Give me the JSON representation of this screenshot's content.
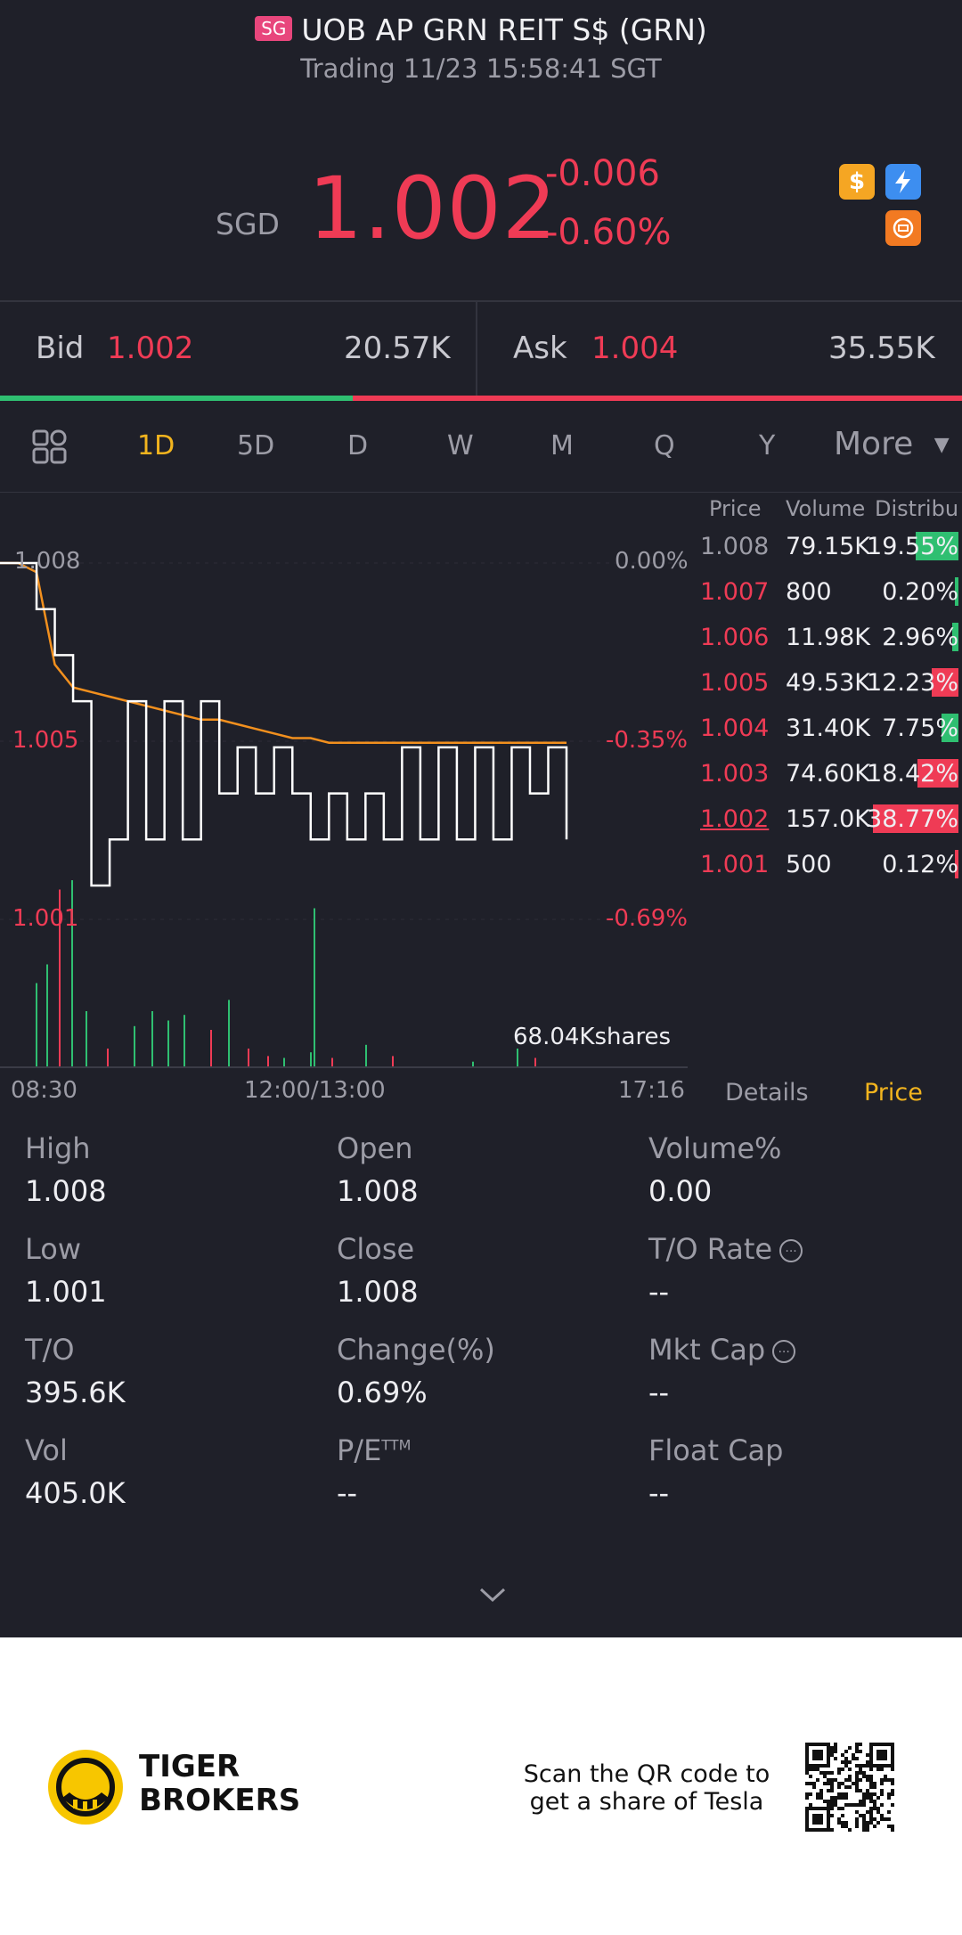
{
  "header": {
    "market_badge": "SG",
    "title": "UOB AP GRN REIT S$ (GRN)",
    "subtitle": "Trading 11/23 15:58:41 SGT",
    "currency": "SGD",
    "price": "1.002",
    "change": "-0.006",
    "change_pct": "-0.60%",
    "icons": [
      "dollar-icon",
      "lightning-icon",
      "badge-icon"
    ]
  },
  "quote": {
    "bid_label": "Bid",
    "bid_price": "1.002",
    "bid_size": "20.57K",
    "ask_label": "Ask",
    "ask_price": "1.004",
    "ask_size": "35.55K",
    "bid_ratio": 0.367
  },
  "tabs": [
    "1D",
    "5D",
    "D",
    "W",
    "M",
    "Q",
    "Y",
    "More"
  ],
  "active_tab": "1D",
  "chart": {
    "y_labels": [
      "1.008",
      "1.005",
      "1.001"
    ],
    "pct_labels": [
      "0.00%",
      "-0.35%",
      "-0.69%"
    ],
    "x_labels": [
      "08:30",
      "12:00/13:00",
      "17:16"
    ],
    "volume_label": "68.04Kshares",
    "colors": {
      "price_line": "#ffffff",
      "avg_line": "#f2901e",
      "up": "#2fbf71",
      "down": "#ef3b55"
    }
  },
  "chart_data": {
    "type": "line",
    "ylim": [
      1.001,
      1.008
    ],
    "series": [
      {
        "values": [
          1.008,
          1.008,
          1.007,
          1.006,
          1.005,
          1.001,
          1.002,
          1.005,
          1.002,
          1.005,
          1.002,
          1.005,
          1.003,
          1.004,
          1.003,
          1.004,
          1.003,
          1.002,
          1.003,
          1.002,
          1.003,
          1.002,
          1.004,
          1.002,
          1.004,
          1.002,
          1.004,
          1.002,
          1.004,
          1.003,
          1.004,
          1.002
        ]
      },
      {
        "values": [
          1.008,
          1.008,
          1.0078,
          1.0058,
          1.0053,
          1.0052,
          1.0051,
          1.005,
          1.0049,
          1.0048,
          1.0047,
          1.0046,
          1.0046,
          1.0045,
          1.0044,
          1.0043,
          1.0042,
          1.0042,
          1.0041,
          1.0041,
          1.0041,
          1.0041,
          1.0041,
          1.0041,
          1.0041,
          1.0041,
          1.0041,
          1.0041,
          1.0041,
          1.0041,
          1.0041,
          1.0041
        ]
      }
    ]
  },
  "order_book": {
    "headers": [
      "Price",
      "Volume",
      "Distribu"
    ],
    "rows": [
      {
        "price": "1.008",
        "volume": "79.15K",
        "dist": "19.55%",
        "pct": 19.55,
        "color": "up"
      },
      {
        "price": "1.007",
        "volume": "800",
        "dist": "0.20%",
        "pct": 0.2,
        "color": "up"
      },
      {
        "price": "1.006",
        "volume": "11.98K",
        "dist": "2.96%",
        "pct": 2.96,
        "color": "up"
      },
      {
        "price": "1.005",
        "volume": "49.53K",
        "dist": "12.23%",
        "pct": 12.23,
        "color": "down"
      },
      {
        "price": "1.004",
        "volume": "31.40K",
        "dist": "7.75%",
        "pct": 7.75,
        "color": "up"
      },
      {
        "price": "1.003",
        "volume": "74.60K",
        "dist": "18.42%",
        "pct": 18.42,
        "color": "down"
      },
      {
        "price": "1.002",
        "volume": "157.0K",
        "dist": "38.77%",
        "pct": 38.77,
        "color": "down"
      },
      {
        "price": "1.001",
        "volume": "500",
        "dist": "0.12%",
        "pct": 0.12,
        "color": "down"
      }
    ]
  },
  "side_tabs": {
    "details": "Details",
    "price": "Price"
  },
  "stats": [
    {
      "label": "High",
      "value": "1.008"
    },
    {
      "label": "Open",
      "value": "1.008"
    },
    {
      "label": "Volume%",
      "value": "0.00"
    },
    {
      "label": "Low",
      "value": "1.001"
    },
    {
      "label": "Close",
      "value": "1.008"
    },
    {
      "label": "T/O Rate",
      "value": "--"
    },
    {
      "label": "T/O",
      "value": "395.6K"
    },
    {
      "label": "Change(%)",
      "value": "0.69%"
    },
    {
      "label": "Mkt Cap",
      "value": "--"
    },
    {
      "label": "Vol",
      "value": "405.0K"
    },
    {
      "label": "P/E",
      "value": "--"
    },
    {
      "label": "Float Cap",
      "value": "--"
    }
  ],
  "pe_superscript": "TTM",
  "footer": {
    "brand_line1": "TIGER",
    "brand_line2": "BROKERS",
    "promo_line1": "Scan the QR code to",
    "promo_line2": "get a share of Tesla"
  }
}
